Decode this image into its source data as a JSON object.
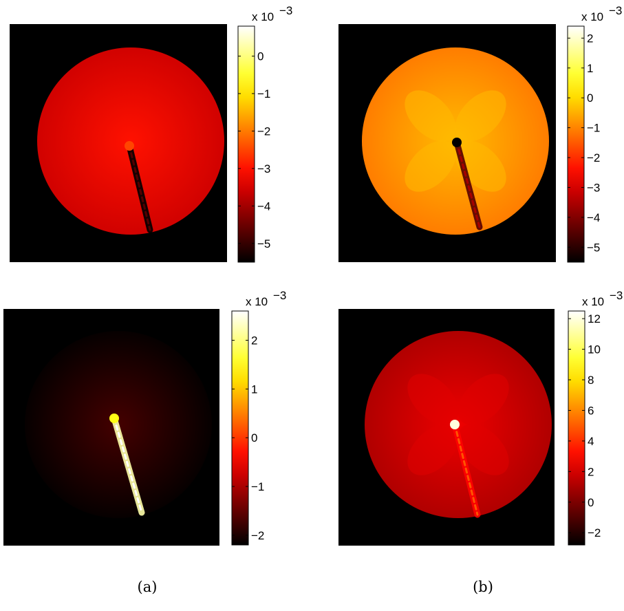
{
  "chart_data": [
    {
      "type": "heatmap",
      "panel": "top-left",
      "colormap": "hot",
      "colorbar": {
        "multiplier": "x 10",
        "exponent": "−3",
        "ticks": [
          0,
          -1,
          -2,
          -3,
          -4,
          -5
        ],
        "tick_labels": [
          "0",
          "−1",
          "−2",
          "−3",
          "−4",
          "−5"
        ],
        "range": [
          -5.5,
          0.8
        ]
      },
      "field": {
        "base": 0.35,
        "crack_value": -5.5,
        "tip_value": -2.5,
        "lobe_amplitude": 0.0
      }
    },
    {
      "type": "heatmap",
      "panel": "top-right",
      "colormap": "hot",
      "colorbar": {
        "multiplier": "x 10",
        "exponent": "−3",
        "ticks": [
          2,
          1,
          0,
          -1,
          -2,
          -3,
          -4,
          -5
        ],
        "tick_labels": [
          "2",
          "1",
          "0",
          "−1",
          "−2",
          "−3",
          "−4",
          "−5"
        ],
        "range": [
          -5.5,
          2.4
        ]
      },
      "field": {
        "base": 0.6,
        "crack_value": -4.5,
        "tip_value": -5.5,
        "lobe_amplitude": 0.8
      }
    },
    {
      "type": "heatmap",
      "panel": "bottom-left",
      "colormap": "hot",
      "colorbar": {
        "multiplier": "x 10",
        "exponent": "−3",
        "ticks": [
          2,
          1,
          0,
          -1,
          -2
        ],
        "tick_labels": [
          "2",
          "1",
          "0",
          "−1",
          "−2"
        ],
        "range": [
          -2.2,
          2.6
        ]
      },
      "field": {
        "base": 0.05,
        "crack_value": 2.2,
        "tip_value": 1.5,
        "lobe_amplitude": 0.0
      }
    },
    {
      "type": "heatmap",
      "panel": "bottom-right",
      "colormap": "hot",
      "colorbar": {
        "multiplier": "x 10",
        "exponent": "−3",
        "ticks": [
          12,
          10,
          8,
          6,
          4,
          2,
          0,
          -2
        ],
        "tick_labels": [
          "12",
          "10",
          "8",
          "6",
          "4",
          "2",
          "0",
          "−2"
        ],
        "range": [
          -2.8,
          12.5
        ]
      },
      "field": {
        "base": 0.3,
        "crack_value": 3.0,
        "tip_value": 12.0,
        "lobe_amplitude": 0.5
      }
    }
  ],
  "captions": {
    "left": "(a)",
    "right": "(b)"
  }
}
